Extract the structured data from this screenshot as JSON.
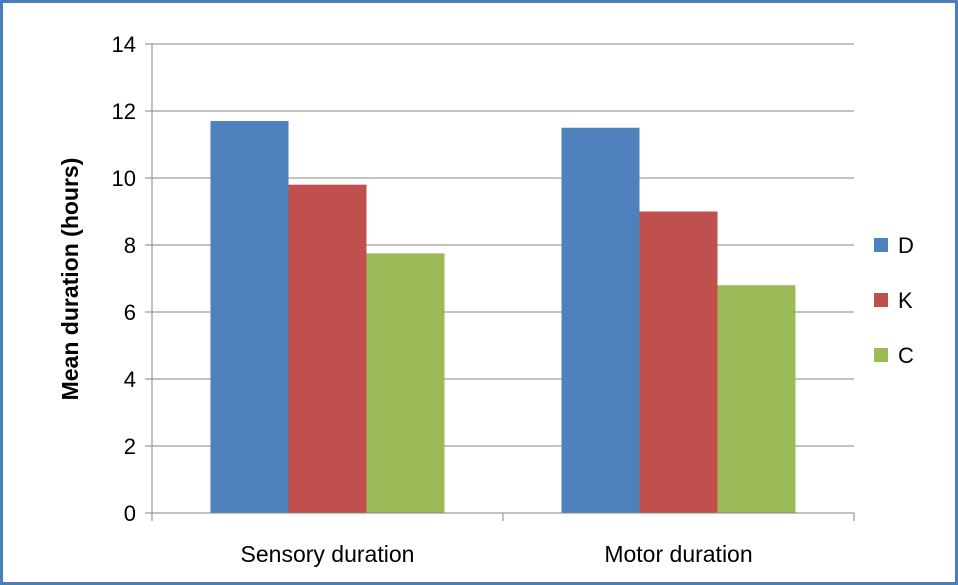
{
  "chart_data": {
    "type": "bar",
    "categories": [
      "Sensory duration",
      "Motor duration"
    ],
    "series": [
      {
        "name": "D",
        "values": [
          11.7,
          11.5
        ],
        "color": "#4f81bd"
      },
      {
        "name": "K",
        "values": [
          9.8,
          9.0
        ],
        "color": "#c0504d"
      },
      {
        "name": "C",
        "values": [
          7.75,
          6.8
        ],
        "color": "#9bbb59"
      }
    ],
    "title": "",
    "xlabel": "",
    "ylabel": "Mean duration  (hours)",
    "ylim": [
      0,
      14
    ],
    "yticks": [
      "0",
      "2",
      "4",
      "6",
      "8",
      "10",
      "12",
      "14"
    ],
    "grid": true,
    "legend_position": "right",
    "frame_color": "#4a7ebb"
  }
}
